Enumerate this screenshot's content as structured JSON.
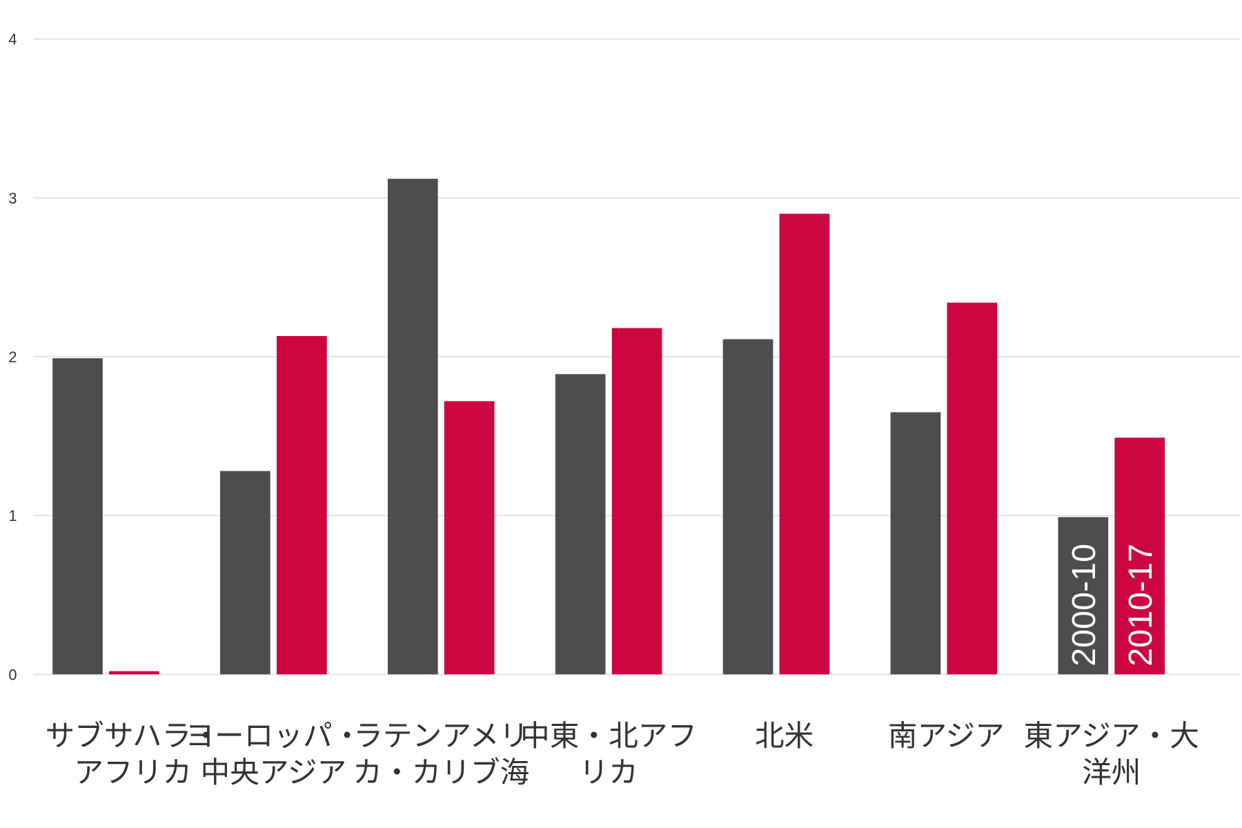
{
  "chart_data": {
    "type": "bar",
    "title": "",
    "xlabel": "",
    "ylabel": "",
    "ylim": [
      0,
      4
    ],
    "yticks": [
      0,
      1,
      2,
      3,
      4
    ],
    "grid": true,
    "legend_placement": "inside last bar group",
    "categories": [
      [
        "サブサハラ・",
        "アフリカ"
      ],
      [
        "ヨーロッパ・",
        "中央アジア"
      ],
      [
        "ラテンアメリ",
        "カ・カリブ海"
      ],
      [
        "中東・北アフ",
        "リカ"
      ],
      [
        "北米"
      ],
      [
        "南アジア"
      ],
      [
        "東アジア・大",
        "洋州"
      ]
    ],
    "series": [
      {
        "name": "2000-10",
        "color": "#4d4d4d",
        "values": [
          1.99,
          1.28,
          3.12,
          1.89,
          2.11,
          1.65,
          0.99
        ]
      },
      {
        "name": "2010-17",
        "color": "#cc0641",
        "values": [
          0.02,
          2.13,
          1.72,
          2.18,
          2.9,
          2.34,
          1.49
        ]
      }
    ]
  }
}
